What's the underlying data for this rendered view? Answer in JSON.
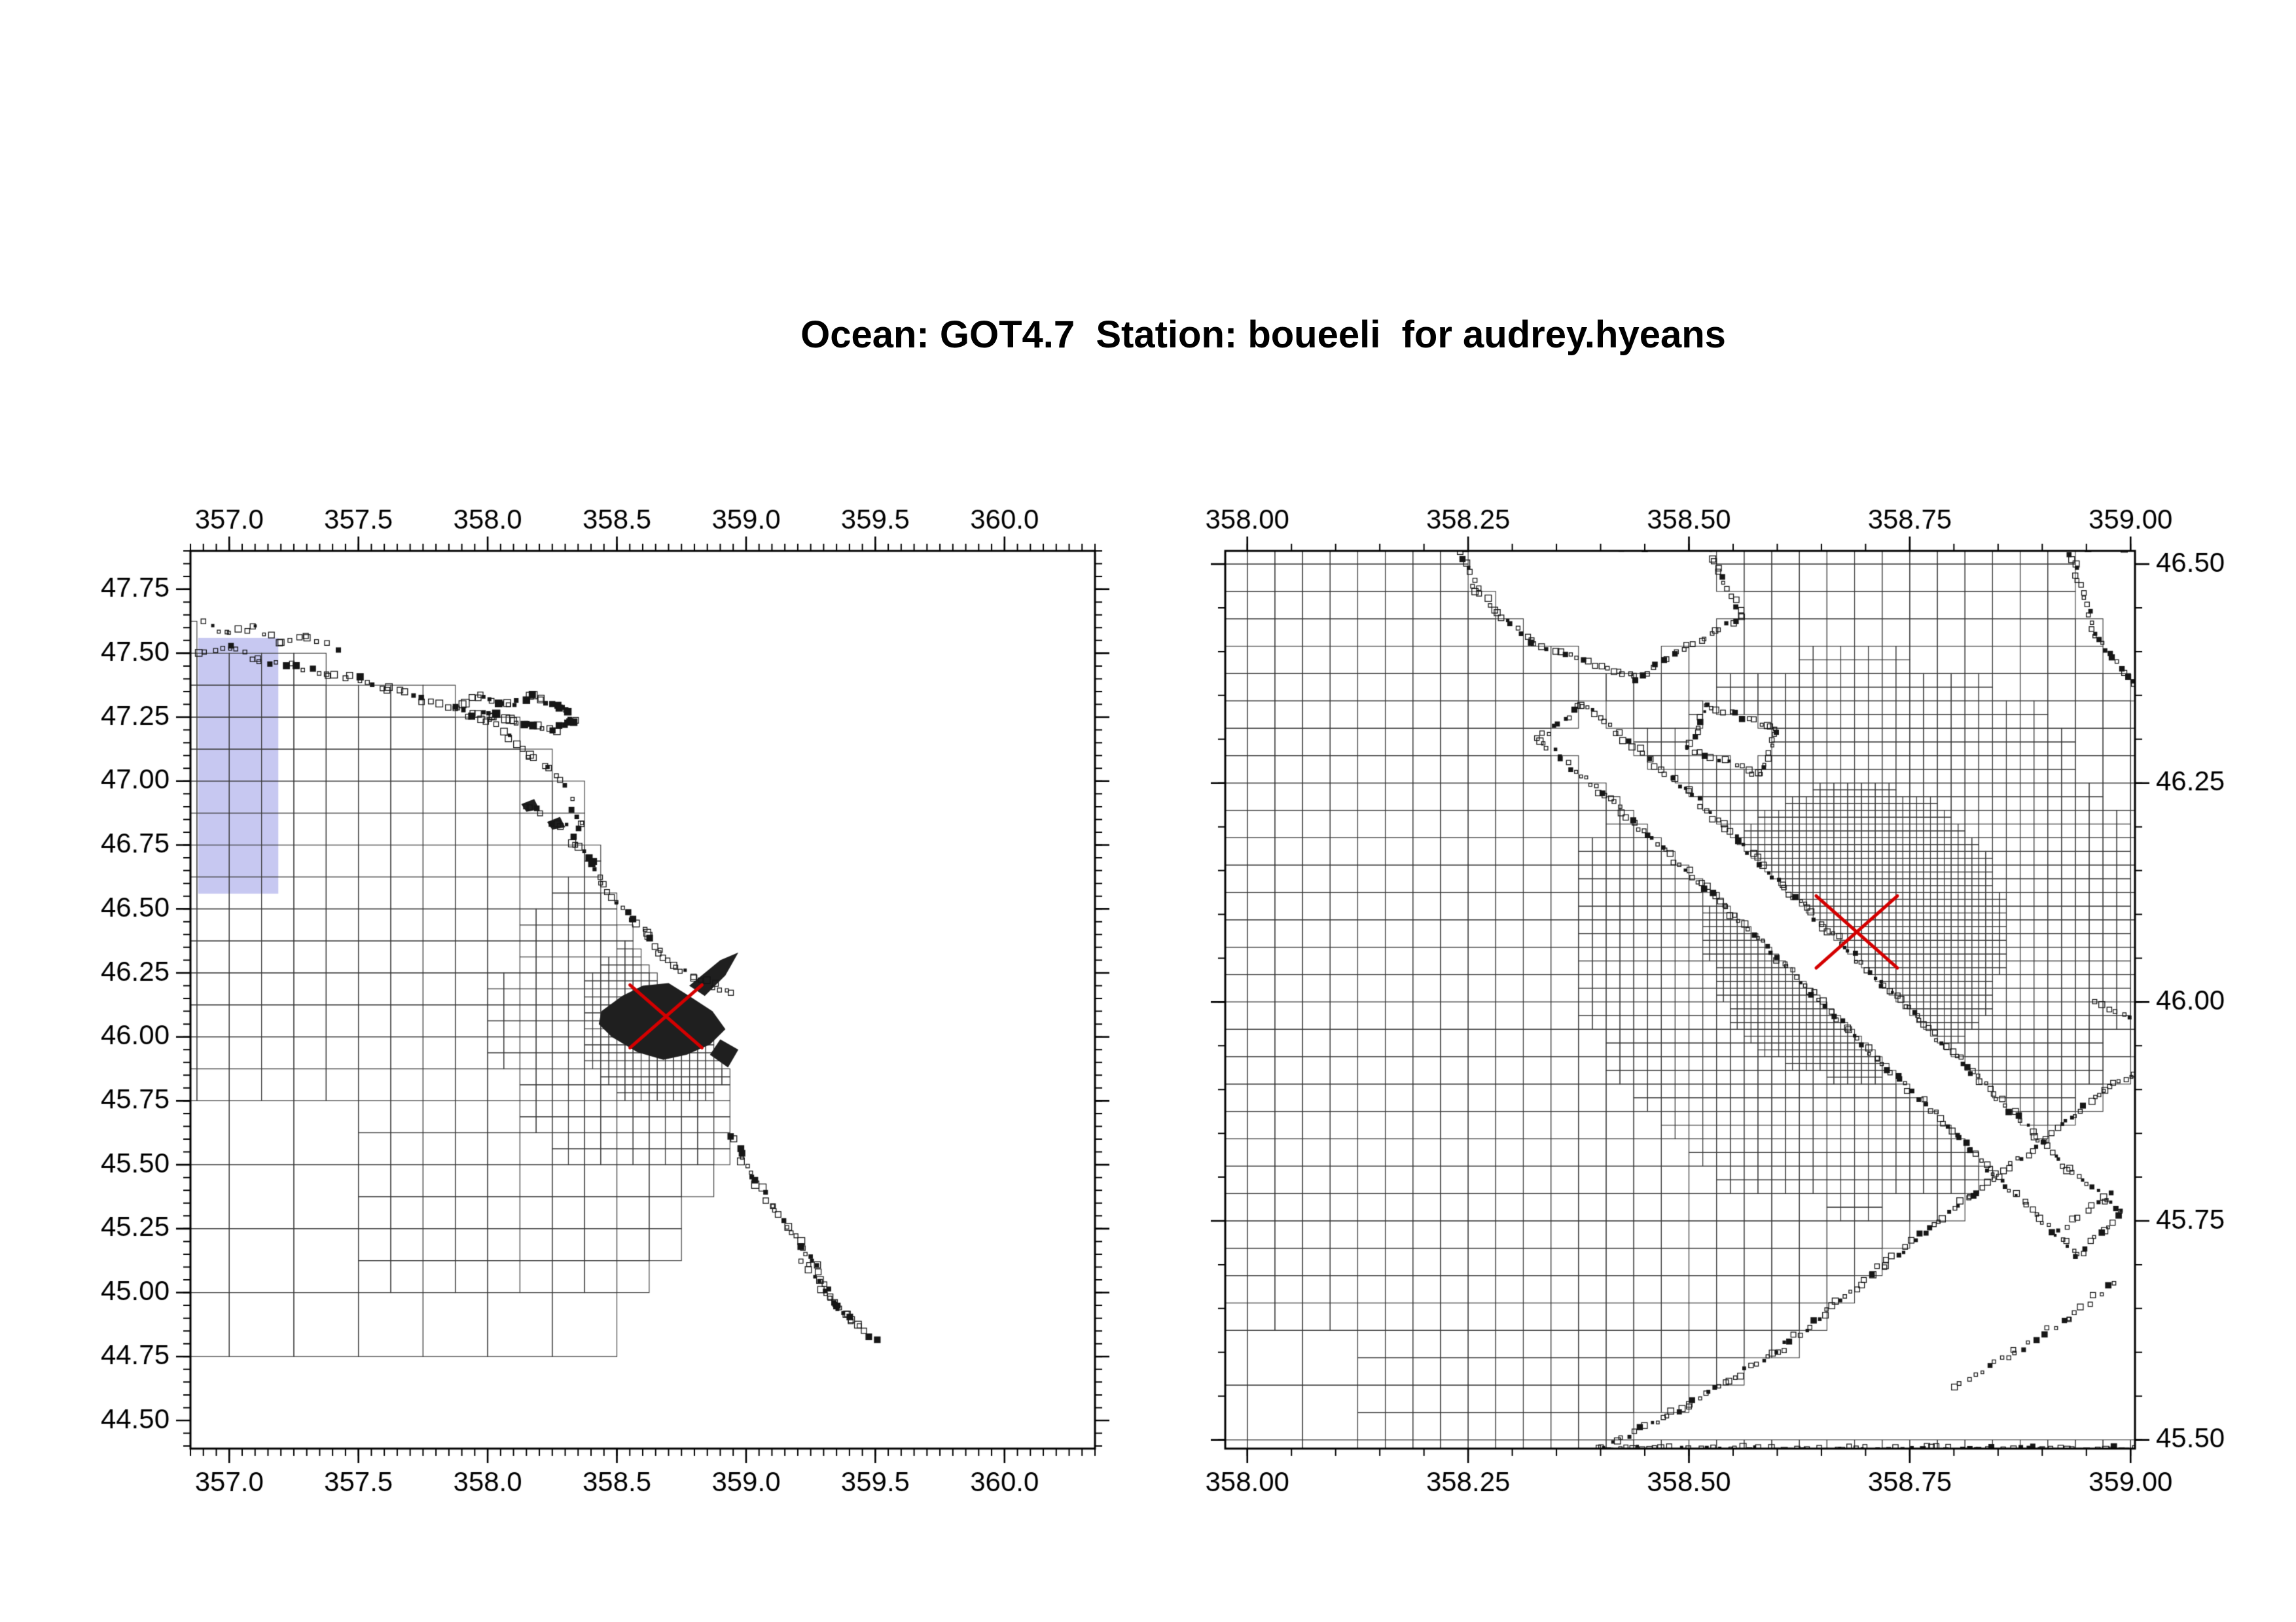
{
  "title": "Ocean: GOT4.7  Station: boueeli  for audrey.hyeans",
  "colors": {
    "background": "#ffffff",
    "frame": "#000000",
    "grid": "#3c3c3c",
    "coast": "#161616",
    "land_fill": "#1f1f1f",
    "highlight": "#c7c8f1",
    "station_cross": "#d40000",
    "text": "#000000"
  },
  "chart_data": {
    "type": "map-grid",
    "title": "Ocean: GOT4.7  Station: boueeli  for audrey.hyeans",
    "model": "GOT4.7",
    "station_name": "boueeli",
    "user": "audrey.hyeans",
    "station": {
      "lon": 358.69,
      "lat": 46.08,
      "marker": "red-x",
      "color": "#d40000"
    },
    "panels": [
      {
        "name": "overview",
        "x_range": [
          356.85,
          360.35
        ],
        "y_range": [
          44.39,
          47.9
        ],
        "x_ticks": [
          357.0,
          357.5,
          358.0,
          358.5,
          359.0,
          359.5,
          360.0
        ],
        "x_tick_labels": [
          "357.0",
          "357.5",
          "358.0",
          "358.5",
          "359.0",
          "359.5",
          "360.0"
        ],
        "y_ticks": [
          47.75,
          47.5,
          47.25,
          47.0,
          46.75,
          46.5,
          46.25,
          46.0,
          45.75,
          45.5,
          45.25,
          45.0,
          44.75,
          44.5
        ],
        "y_tick_labels": [
          "47.75",
          "47.50",
          "47.25",
          "47.00",
          "46.75",
          "46.50",
          "46.25",
          "46.00",
          "45.75",
          "45.50",
          "45.25",
          "45.00",
          "44.75",
          "44.50"
        ],
        "minor_step": 0.05,
        "x_label_sides": [
          "top",
          "bottom"
        ],
        "y_label_side": "left",
        "highlight_rect": {
          "lon_min": 356.88,
          "lon_max": 357.19,
          "lat_min": 46.56,
          "lat_max": 47.56
        },
        "domain": {
          "lon_min": 356.8,
          "lat_min": 44.75
        },
        "coast_top": [
          [
            356.85,
            47.58
          ],
          [
            357.1,
            47.52
          ],
          [
            357.4,
            47.44
          ],
          [
            357.7,
            47.36
          ],
          [
            357.95,
            47.27
          ],
          [
            358.1,
            47.18
          ],
          [
            360.4,
            47.18
          ]
        ],
        "coast_right": [
          [
            44.75,
            358.45
          ],
          [
            44.9,
            358.5
          ],
          [
            45.1,
            358.62
          ],
          [
            45.3,
            358.8
          ],
          [
            45.5,
            358.95
          ],
          [
            45.9,
            358.92
          ],
          [
            46.05,
            358.82
          ],
          [
            46.2,
            358.66
          ],
          [
            46.4,
            358.55
          ],
          [
            46.6,
            358.45
          ],
          [
            46.8,
            358.38
          ],
          [
            47.0,
            358.3
          ],
          [
            47.2,
            358.28
          ],
          [
            47.9,
            358.1
          ]
        ],
        "refinement": {
          "radii": [
            0.3,
            0.58
          ],
          "sizes": [
            0.03125,
            0.0625
          ],
          "base_size": 0.125,
          "coarse_regions": [
            {
              "lat_max": 45.02,
              "lon_max": 999,
              "size": 0.25
            },
            {
              "lat_max": 45.78,
              "lon_max": 357.68,
              "size": 0.25
            }
          ]
        },
        "dark_polygons": [
          [
            [
              358.44,
              46.1
            ],
            [
              358.52,
              46.16
            ],
            [
              358.6,
              46.2
            ],
            [
              358.7,
              46.21
            ],
            [
              358.78,
              46.16
            ],
            [
              358.87,
              46.1
            ],
            [
              358.92,
              46.03
            ],
            [
              358.86,
              45.97
            ],
            [
              358.77,
              45.93
            ],
            [
              358.68,
              45.91
            ],
            [
              358.58,
              45.94
            ],
            [
              358.48,
              46.0
            ],
            [
              358.43,
              46.05
            ]
          ],
          [
            [
              358.9,
              45.99
            ],
            [
              358.97,
              45.95
            ],
            [
              358.93,
              45.88
            ],
            [
              358.86,
              45.93
            ]
          ],
          [
            [
              358.78,
              46.2
            ],
            [
              358.9,
              46.3
            ],
            [
              358.97,
              46.33
            ],
            [
              358.92,
              46.24
            ],
            [
              358.84,
              46.16
            ]
          ],
          [
            [
              358.13,
              46.91
            ],
            [
              358.18,
              46.93
            ],
            [
              358.2,
              46.89
            ],
            [
              358.15,
              46.88
            ]
          ],
          [
            [
              358.23,
              46.84
            ],
            [
              358.28,
              46.86
            ],
            [
              358.3,
              46.82
            ],
            [
              358.25,
              46.81
            ]
          ]
        ],
        "speckle_paths": [
          {
            "pts": [
              [
                356.88,
                47.5
              ],
              [
                357.0,
                47.52
              ],
              [
                357.12,
                47.47
              ],
              [
                357.25,
                47.45
              ],
              [
                357.38,
                47.42
              ],
              [
                357.5,
                47.4
              ],
              [
                357.62,
                47.36
              ],
              [
                357.75,
                47.32
              ],
              [
                357.88,
                47.28
              ],
              [
                358.0,
                47.24
              ],
              [
                358.08,
                47.17
              ],
              [
                358.16,
                47.1
              ],
              [
                358.24,
                47.05
              ],
              [
                358.3,
                46.98
              ]
            ],
            "step": 11,
            "size": 8,
            "fill": 0.3
          },
          {
            "pts": [
              [
                356.9,
                47.62
              ],
              [
                357.0,
                47.58
              ],
              [
                357.1,
                47.6
              ],
              [
                357.2,
                47.55
              ],
              [
                357.3,
                47.57
              ],
              [
                357.42,
                47.52
              ]
            ],
            "step": 13,
            "size": 7,
            "fill": 0.25
          },
          {
            "pts": [
              [
                357.88,
                47.3
              ],
              [
                357.98,
                47.33
              ],
              [
                358.08,
                47.3
              ],
              [
                358.18,
                47.33
              ],
              [
                358.28,
                47.29
              ],
              [
                358.34,
                47.24
              ],
              [
                358.26,
                47.2
              ],
              [
                358.14,
                47.23
              ],
              [
                358.02,
                47.26
              ],
              [
                357.92,
                47.26
              ]
            ],
            "step": 7,
            "size": 9,
            "fill": 0.5
          },
          {
            "pts": [
              [
                358.14,
                46.9
              ],
              [
                358.2,
                46.88
              ]
            ],
            "step": 7,
            "size": 8,
            "fill": 0.5
          },
          {
            "pts": [
              [
                358.24,
                46.83
              ],
              [
                358.3,
                46.82
              ]
            ],
            "step": 7,
            "size": 8,
            "fill": 0.5
          },
          {
            "pts": [
              [
                358.32,
                46.92
              ],
              [
                358.36,
                46.84
              ],
              [
                358.33,
                46.76
              ],
              [
                358.4,
                46.68
              ],
              [
                358.44,
                46.6
              ],
              [
                358.5,
                46.52
              ],
              [
                358.56,
                46.46
              ],
              [
                358.62,
                46.4
              ],
              [
                358.66,
                46.33
              ],
              [
                358.72,
                46.28
              ],
              [
                358.8,
                46.24
              ],
              [
                358.88,
                46.2
              ],
              [
                358.95,
                46.17
              ]
            ],
            "step": 10,
            "size": 8,
            "fill": 0.35
          },
          {
            "pts": [
              [
                358.95,
                45.62
              ],
              [
                358.99,
                45.52
              ],
              [
                359.04,
                45.43
              ],
              [
                359.1,
                45.34
              ],
              [
                359.16,
                45.26
              ],
              [
                359.22,
                45.18
              ],
              [
                359.27,
                45.1
              ],
              [
                359.31,
                45.01
              ],
              [
                359.36,
                44.93
              ],
              [
                359.43,
                44.87
              ],
              [
                359.5,
                44.82
              ]
            ],
            "step": 9,
            "size": 8,
            "fill": 0.45
          },
          {
            "pts": [
              [
                359.22,
                45.13
              ],
              [
                359.28,
                45.04
              ],
              [
                359.34,
                44.96
              ],
              [
                359.41,
                44.89
              ]
            ],
            "step": 9,
            "size": 7,
            "fill": 0.45
          }
        ]
      },
      {
        "name": "zoom",
        "x_range": [
          357.975,
          359.005
        ],
        "y_range": [
          45.49,
          46.515
        ],
        "x_ticks": [
          358.0,
          358.25,
          358.5,
          358.75,
          359.0
        ],
        "x_tick_labels": [
          "358.00",
          "358.25",
          "358.50",
          "358.75",
          "359.00"
        ],
        "y_ticks": [
          46.5,
          46.25,
          46.0,
          45.75,
          45.5
        ],
        "y_tick_labels": [
          "46.50",
          "46.25",
          "46.00",
          "45.75",
          "45.50"
        ],
        "minor_step": 0.05,
        "x_label_sides": [
          "top",
          "bottom"
        ],
        "y_label_side": "right",
        "refinement": {
          "radii": [
            0.16,
            0.3
          ],
          "sizes": [
            0.0078125,
            0.015625
          ],
          "base_size": 0.03125,
          "coarse_regions": [
            {
              "lat_max": 45.68,
              "lon_max": 358.16,
              "size": 0.0625
            }
          ]
        },
        "land_polygons": [
          [
            [
              358.4,
              45.49
            ],
            [
              359.03,
              45.49
            ],
            [
              359.03,
              45.93
            ],
            [
              358.97,
              45.9
            ],
            [
              358.9,
              45.84
            ],
            [
              358.82,
              45.78
            ],
            [
              358.72,
              45.7
            ],
            [
              358.6,
              45.6
            ],
            [
              358.5,
              45.54
            ]
          ],
          [
            [
              358.38,
              46.34
            ],
            [
              358.5,
              46.24
            ],
            [
              358.62,
              46.12
            ],
            [
              358.72,
              46.02
            ],
            [
              358.82,
              45.92
            ],
            [
              358.93,
              45.81
            ],
            [
              358.99,
              45.76
            ],
            [
              358.94,
              45.71
            ],
            [
              358.84,
              45.81
            ],
            [
              358.74,
              45.91
            ],
            [
              358.64,
              46.01
            ],
            [
              358.52,
              46.13
            ],
            [
              358.4,
              46.24
            ],
            [
              358.33,
              46.3
            ]
          ],
          [
            [
              358.24,
              46.52
            ],
            [
              358.52,
              46.52
            ],
            [
              358.56,
              46.44
            ],
            [
              358.44,
              46.37
            ],
            [
              358.32,
              46.41
            ],
            [
              358.26,
              46.47
            ]
          ],
          [
            [
              358.93,
              46.52
            ],
            [
              359.03,
              46.52
            ],
            [
              359.03,
              46.33
            ],
            [
              358.96,
              46.42
            ]
          ],
          [
            [
              358.52,
              46.34
            ],
            [
              358.6,
              46.31
            ],
            [
              358.58,
              46.26
            ],
            [
              358.5,
              46.29
            ]
          ]
        ],
        "speckle_land_boundaries": true,
        "speckle_paths": [
          {
            "pts": [
              [
                358.8,
                45.56
              ],
              [
                358.87,
                45.6
              ],
              [
                358.93,
                45.64
              ],
              [
                358.98,
                45.68
              ]
            ],
            "step": 12,
            "size": 7,
            "fill": 0.3
          },
          {
            "pts": [
              [
                358.92,
                45.74
              ],
              [
                358.98,
                45.78
              ]
            ],
            "step": 12,
            "size": 7,
            "fill": 0.3
          },
          {
            "pts": [
              [
                358.96,
                46.0
              ],
              [
                359.0,
                45.98
              ]
            ],
            "step": 12,
            "size": 7,
            "fill": 0.3
          }
        ]
      }
    ]
  }
}
